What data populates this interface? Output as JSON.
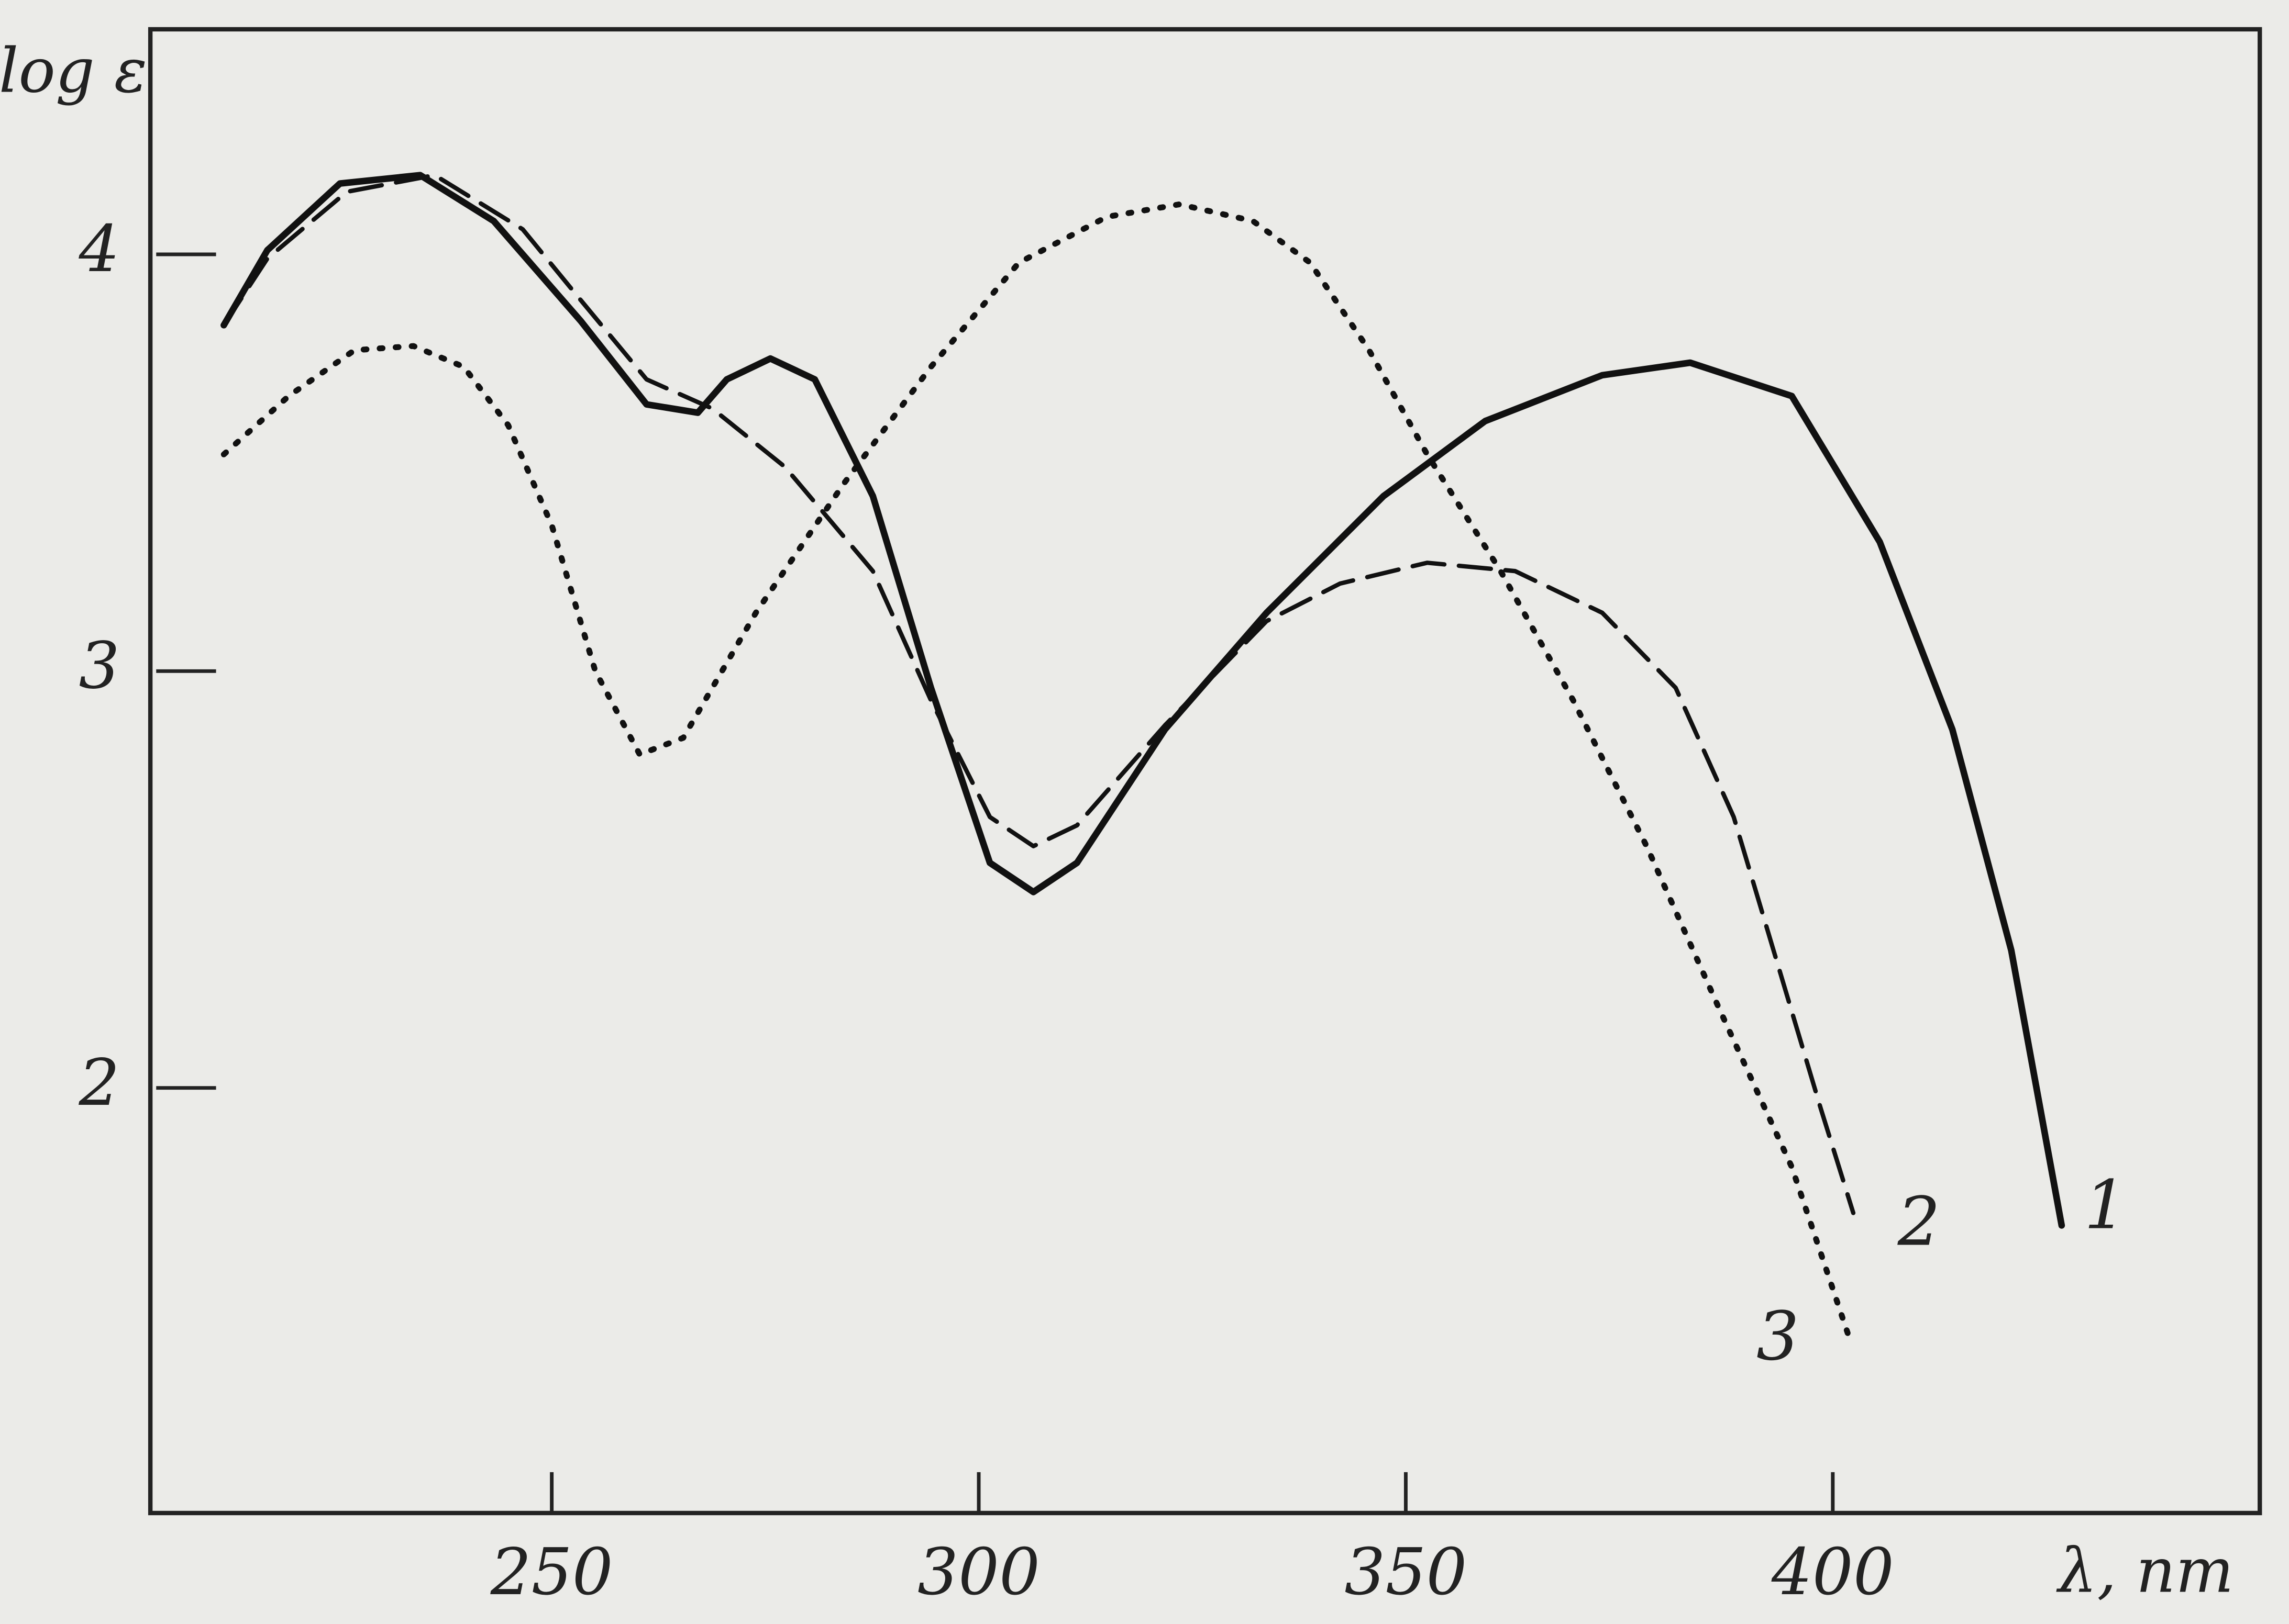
{
  "chart_data": {
    "type": "line",
    "x_label": "λ, nm",
    "y_label": "log ε",
    "xlim": [
      203,
      450
    ],
    "ylim": [
      0.98,
      4.54
    ],
    "xticks": [
      250,
      300,
      350,
      400
    ],
    "yticks": [
      2,
      3,
      4
    ],
    "series": [
      {
        "name": "1",
        "color": "#111111",
        "style": "solid",
        "x": [
          211.6,
          216.7,
          225.2,
          234.6,
          243.2,
          253.4,
          261.1,
          267.1,
          270.5,
          275.6,
          280.8,
          287.6,
          294.4,
          301.3,
          306.4,
          311.5,
          321.8,
          333.7,
          347.4,
          359.3,
          373.0,
          383.3,
          395.2,
          405.5,
          414.0,
          420.9,
          426.8
        ],
        "values": [
          3.83,
          4.01,
          4.17,
          4.19,
          4.08,
          3.84,
          3.64,
          3.62,
          3.7,
          3.75,
          3.7,
          3.42,
          2.96,
          2.54,
          2.47,
          2.54,
          2.86,
          3.14,
          3.42,
          3.6,
          3.71,
          3.74,
          3.66,
          3.31,
          2.86,
          2.33,
          1.67
        ]
      },
      {
        "name": "2",
        "color": "#111111",
        "style": "dashed",
        "x": [
          211.6,
          216.7,
          226.0,
          236.3,
          246.6,
          253.4,
          261.1,
          268.8,
          277.3,
          287.6,
          294.4,
          301.3,
          306.4,
          311.5,
          321.8,
          333.7,
          342.3,
          352.5,
          362.8,
          373.0,
          381.6,
          388.4,
          393.5,
          398.6,
          402.4
        ],
        "values": [
          3.83,
          3.99,
          4.15,
          4.19,
          4.06,
          3.89,
          3.7,
          3.63,
          3.49,
          3.24,
          2.93,
          2.65,
          2.58,
          2.63,
          2.87,
          3.12,
          3.21,
          3.26,
          3.24,
          3.14,
          2.96,
          2.65,
          2.3,
          1.95,
          1.7
        ]
      },
      {
        "name": "3",
        "color": "#111111",
        "style": "dotted",
        "x": [
          211.6,
          219.2,
          226.9,
          233.8,
          239.7,
          244.9,
          250.0,
          255.1,
          260.3,
          265.4,
          273.9,
          284.2,
          294.4,
          304.7,
          315.0,
          323.5,
          332.1,
          338.8,
          345.7,
          352.5,
          361.1,
          369.6,
          378.2,
          386.7,
          395.2,
          402.1
        ],
        "values": [
          3.52,
          3.66,
          3.77,
          3.78,
          3.73,
          3.59,
          3.35,
          3.0,
          2.8,
          2.84,
          3.14,
          3.45,
          3.73,
          3.98,
          4.09,
          4.12,
          4.08,
          3.98,
          3.77,
          3.52,
          3.24,
          2.93,
          2.58,
          2.19,
          1.81,
          1.39
        ]
      }
    ]
  }
}
